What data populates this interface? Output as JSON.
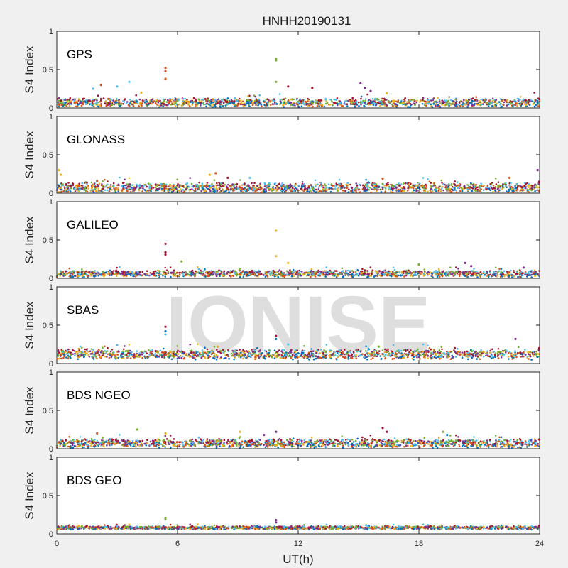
{
  "chart_data": {
    "type": "scatter",
    "title": "HNHH20190131",
    "xlabel": "UT(h)",
    "ylabel": "S4 Index",
    "xlim": [
      0,
      24
    ],
    "ylim": [
      0,
      1
    ],
    "xticks": [
      0,
      6,
      12,
      18,
      24
    ],
    "xtick_labels": [
      "0",
      "6",
      "12",
      "18",
      "24"
    ],
    "yticks": [
      0,
      0.5,
      1
    ],
    "ytick_labels": [
      "0",
      "0.5",
      "1"
    ],
    "grid": false,
    "watermark": "IONISE",
    "series_colors": [
      "#0072bd",
      "#d95319",
      "#edb120",
      "#7e2f8e",
      "#77ac30",
      "#4dbeee",
      "#a2142f"
    ],
    "panels": [
      {
        "label": "GPS",
        "baseline": 0.07,
        "spread": 0.05,
        "spikes": [
          {
            "x": 5.4,
            "y": 0.52,
            "color": "#d95319"
          },
          {
            "x": 5.4,
            "y": 0.48,
            "color": "#d95319"
          },
          {
            "x": 5.4,
            "y": 0.38,
            "color": "#d95319"
          },
          {
            "x": 10.9,
            "y": 0.64,
            "color": "#77ac30"
          },
          {
            "x": 10.9,
            "y": 0.62,
            "color": "#77ac30"
          },
          {
            "x": 10.9,
            "y": 0.34,
            "color": "#77ac30"
          },
          {
            "x": 1.8,
            "y": 0.25,
            "color": "#4dbeee"
          },
          {
            "x": 2.2,
            "y": 0.3,
            "color": "#d95319"
          },
          {
            "x": 3.0,
            "y": 0.28,
            "color": "#4dbeee"
          },
          {
            "x": 3.6,
            "y": 0.34,
            "color": "#4dbeee"
          },
          {
            "x": 4.2,
            "y": 0.2,
            "color": "#edb120"
          },
          {
            "x": 11.5,
            "y": 0.28,
            "color": "#a2142f"
          },
          {
            "x": 12.7,
            "y": 0.26,
            "color": "#a2142f"
          },
          {
            "x": 15.1,
            "y": 0.32,
            "color": "#7e2f8e"
          },
          {
            "x": 15.3,
            "y": 0.26,
            "color": "#7e2f8e"
          },
          {
            "x": 15.6,
            "y": 0.22,
            "color": "#7e2f8e"
          },
          {
            "x": 16.4,
            "y": 0.19,
            "color": "#edb120"
          }
        ]
      },
      {
        "label": "GLONASS",
        "baseline": 0.07,
        "spread": 0.06,
        "spikes": [
          {
            "x": 0.1,
            "y": 0.3,
            "color": "#edb120"
          },
          {
            "x": 0.2,
            "y": 0.24,
            "color": "#edb120"
          },
          {
            "x": 2.0,
            "y": 0.16,
            "color": "#d95319"
          },
          {
            "x": 7.6,
            "y": 0.24,
            "color": "#edb120"
          },
          {
            "x": 7.9,
            "y": 0.26,
            "color": "#d95319"
          },
          {
            "x": 8.5,
            "y": 0.2,
            "color": "#a2142f"
          },
          {
            "x": 9.6,
            "y": 0.2,
            "color": "#4dbeee"
          },
          {
            "x": 16.2,
            "y": 0.19,
            "color": "#d95319"
          },
          {
            "x": 23.9,
            "y": 0.3,
            "color": "#7e2f8e"
          },
          {
            "x": 22.5,
            "y": 0.2,
            "color": "#d95319"
          }
        ]
      },
      {
        "label": "GALILEO",
        "baseline": 0.06,
        "spread": 0.04,
        "spikes": [
          {
            "x": 5.4,
            "y": 0.45,
            "color": "#a2142f"
          },
          {
            "x": 5.4,
            "y": 0.34,
            "color": "#a2142f"
          },
          {
            "x": 5.4,
            "y": 0.31,
            "color": "#a2142f"
          },
          {
            "x": 10.9,
            "y": 0.62,
            "color": "#edb120"
          },
          {
            "x": 10.9,
            "y": 0.29,
            "color": "#edb120"
          },
          {
            "x": 11.5,
            "y": 0.2,
            "color": "#edb120"
          },
          {
            "x": 6.2,
            "y": 0.22,
            "color": "#77ac30"
          },
          {
            "x": 20.3,
            "y": 0.2,
            "color": "#7e2f8e"
          },
          {
            "x": 20.6,
            "y": 0.16,
            "color": "#7e2f8e"
          },
          {
            "x": 23.2,
            "y": 0.14,
            "color": "#7e2f8e"
          },
          {
            "x": 18.0,
            "y": 0.18,
            "color": "#77ac30"
          }
        ]
      },
      {
        "label": "SBAS",
        "baseline": 0.12,
        "spread": 0.06,
        "spikes": [
          {
            "x": 5.4,
            "y": 0.48,
            "color": "#a2142f"
          },
          {
            "x": 5.4,
            "y": 0.42,
            "color": "#0072bd"
          },
          {
            "x": 5.4,
            "y": 0.38,
            "color": "#4dbeee"
          },
          {
            "x": 10.9,
            "y": 0.36,
            "color": "#a2142f"
          },
          {
            "x": 10.9,
            "y": 0.32,
            "color": "#0072bd"
          },
          {
            "x": 11.5,
            "y": 0.25,
            "color": "#4dbeee"
          },
          {
            "x": 22.8,
            "y": 0.32,
            "color": "#7e2f8e"
          },
          {
            "x": 3.0,
            "y": 0.24,
            "color": "#4dbeee"
          },
          {
            "x": 8.0,
            "y": 0.22,
            "color": "#edb120"
          },
          {
            "x": 16.0,
            "y": 0.22,
            "color": "#77ac30"
          }
        ]
      },
      {
        "label": "BDS NGEO",
        "baseline": 0.07,
        "spread": 0.05,
        "spikes": [
          {
            "x": 2.0,
            "y": 0.2,
            "color": "#d95319"
          },
          {
            "x": 4.0,
            "y": 0.25,
            "color": "#77ac30"
          },
          {
            "x": 5.4,
            "y": 0.2,
            "color": "#edb120"
          },
          {
            "x": 9.1,
            "y": 0.22,
            "color": "#edb120"
          },
          {
            "x": 10.3,
            "y": 0.18,
            "color": "#7e2f8e"
          },
          {
            "x": 10.9,
            "y": 0.22,
            "color": "#7e2f8e"
          },
          {
            "x": 16.2,
            "y": 0.27,
            "color": "#a2142f"
          },
          {
            "x": 16.4,
            "y": 0.22,
            "color": "#a2142f"
          },
          {
            "x": 19.2,
            "y": 0.22,
            "color": "#77ac30"
          },
          {
            "x": 19.4,
            "y": 0.18,
            "color": "#0072bd"
          }
        ]
      },
      {
        "label": "BDS GEO",
        "baseline": 0.08,
        "spread": 0.02,
        "spikes": [
          {
            "x": 5.4,
            "y": 0.21,
            "color": "#77ac30"
          },
          {
            "x": 5.4,
            "y": 0.19,
            "color": "#77ac30"
          },
          {
            "x": 10.9,
            "y": 0.18,
            "color": "#7e2f8e"
          },
          {
            "x": 10.9,
            "y": 0.15,
            "color": "#7e2f8e"
          }
        ]
      }
    ]
  }
}
